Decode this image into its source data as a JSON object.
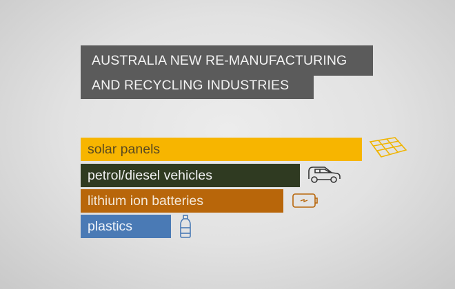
{
  "title": {
    "line1": "AUSTRALIA NEW RE-MANUFACTURING",
    "line2": "AND RECYCLING INDUSTRIES"
  },
  "chart_data": {
    "type": "bar",
    "orientation": "horizontal",
    "title": "AUSTRALIA NEW RE-MANUFACTURING AND RECYCLING INDUSTRIES",
    "categories": [
      "solar panels",
      "petrol/diesel vehicles",
      "lithium ion batteries",
      "plastics"
    ],
    "values": [
      100,
      78,
      72,
      32
    ],
    "value_unit": "relative (% of largest bar, no axis shown)",
    "axes_shown": false,
    "grid": false,
    "colors": [
      "#f7b500",
      "#2f3a21",
      "#b8660a",
      "#4a7ab5"
    ],
    "label_colors": [
      "#5a4a20",
      "#f0f0f0",
      "#f4e8d8",
      "#f0f4fa"
    ],
    "icons": [
      "solar-panel-icon",
      "car-icon",
      "battery-icon",
      "bottle-icon"
    ]
  }
}
